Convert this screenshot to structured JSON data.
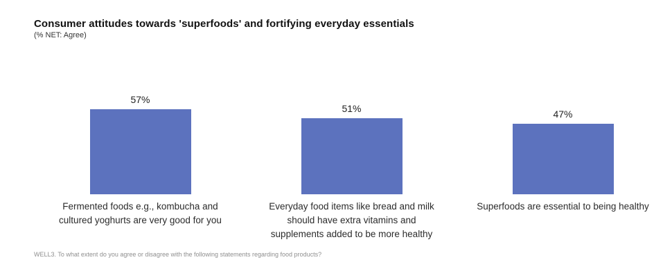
{
  "header": {
    "title": "Consumer attitudes towards 'superfoods' and fortifying everyday essentials",
    "subtitle": "(% NET: Agree)"
  },
  "footnote": "WELL3. To what extent do you agree or disagree with the following statements regarding food products?",
  "chart_data": {
    "type": "bar",
    "title": "Consumer attitudes towards 'superfoods' and fortifying everyday essentials",
    "subtitle": "(% NET: Agree)",
    "xlabel": "",
    "ylabel": "% NET: Agree",
    "ylim": [
      0,
      60
    ],
    "grid": false,
    "legend": false,
    "bar_color": "#5C72BE",
    "value_suffix": "%",
    "values": [
      57,
      51,
      47
    ],
    "value_labels": [
      "57%",
      "51%",
      "47%"
    ],
    "categories": [
      "Fermented foods e.g., kombucha and cultured yoghurts are very good for you",
      "Everyday food items like bread and milk should have extra vitamins and supplements added to be more healthy",
      "Superfoods are essential to being healthy"
    ],
    "category_lines": [
      [
        "Fermented foods e.g., kombucha and",
        "cultured yoghurts are very good for you"
      ],
      [
        "Everyday food items like bread and milk",
        "should have extra vitamins and",
        "supplements added to be more healthy"
      ],
      [
        "Superfoods are essential to being healthy"
      ]
    ]
  }
}
